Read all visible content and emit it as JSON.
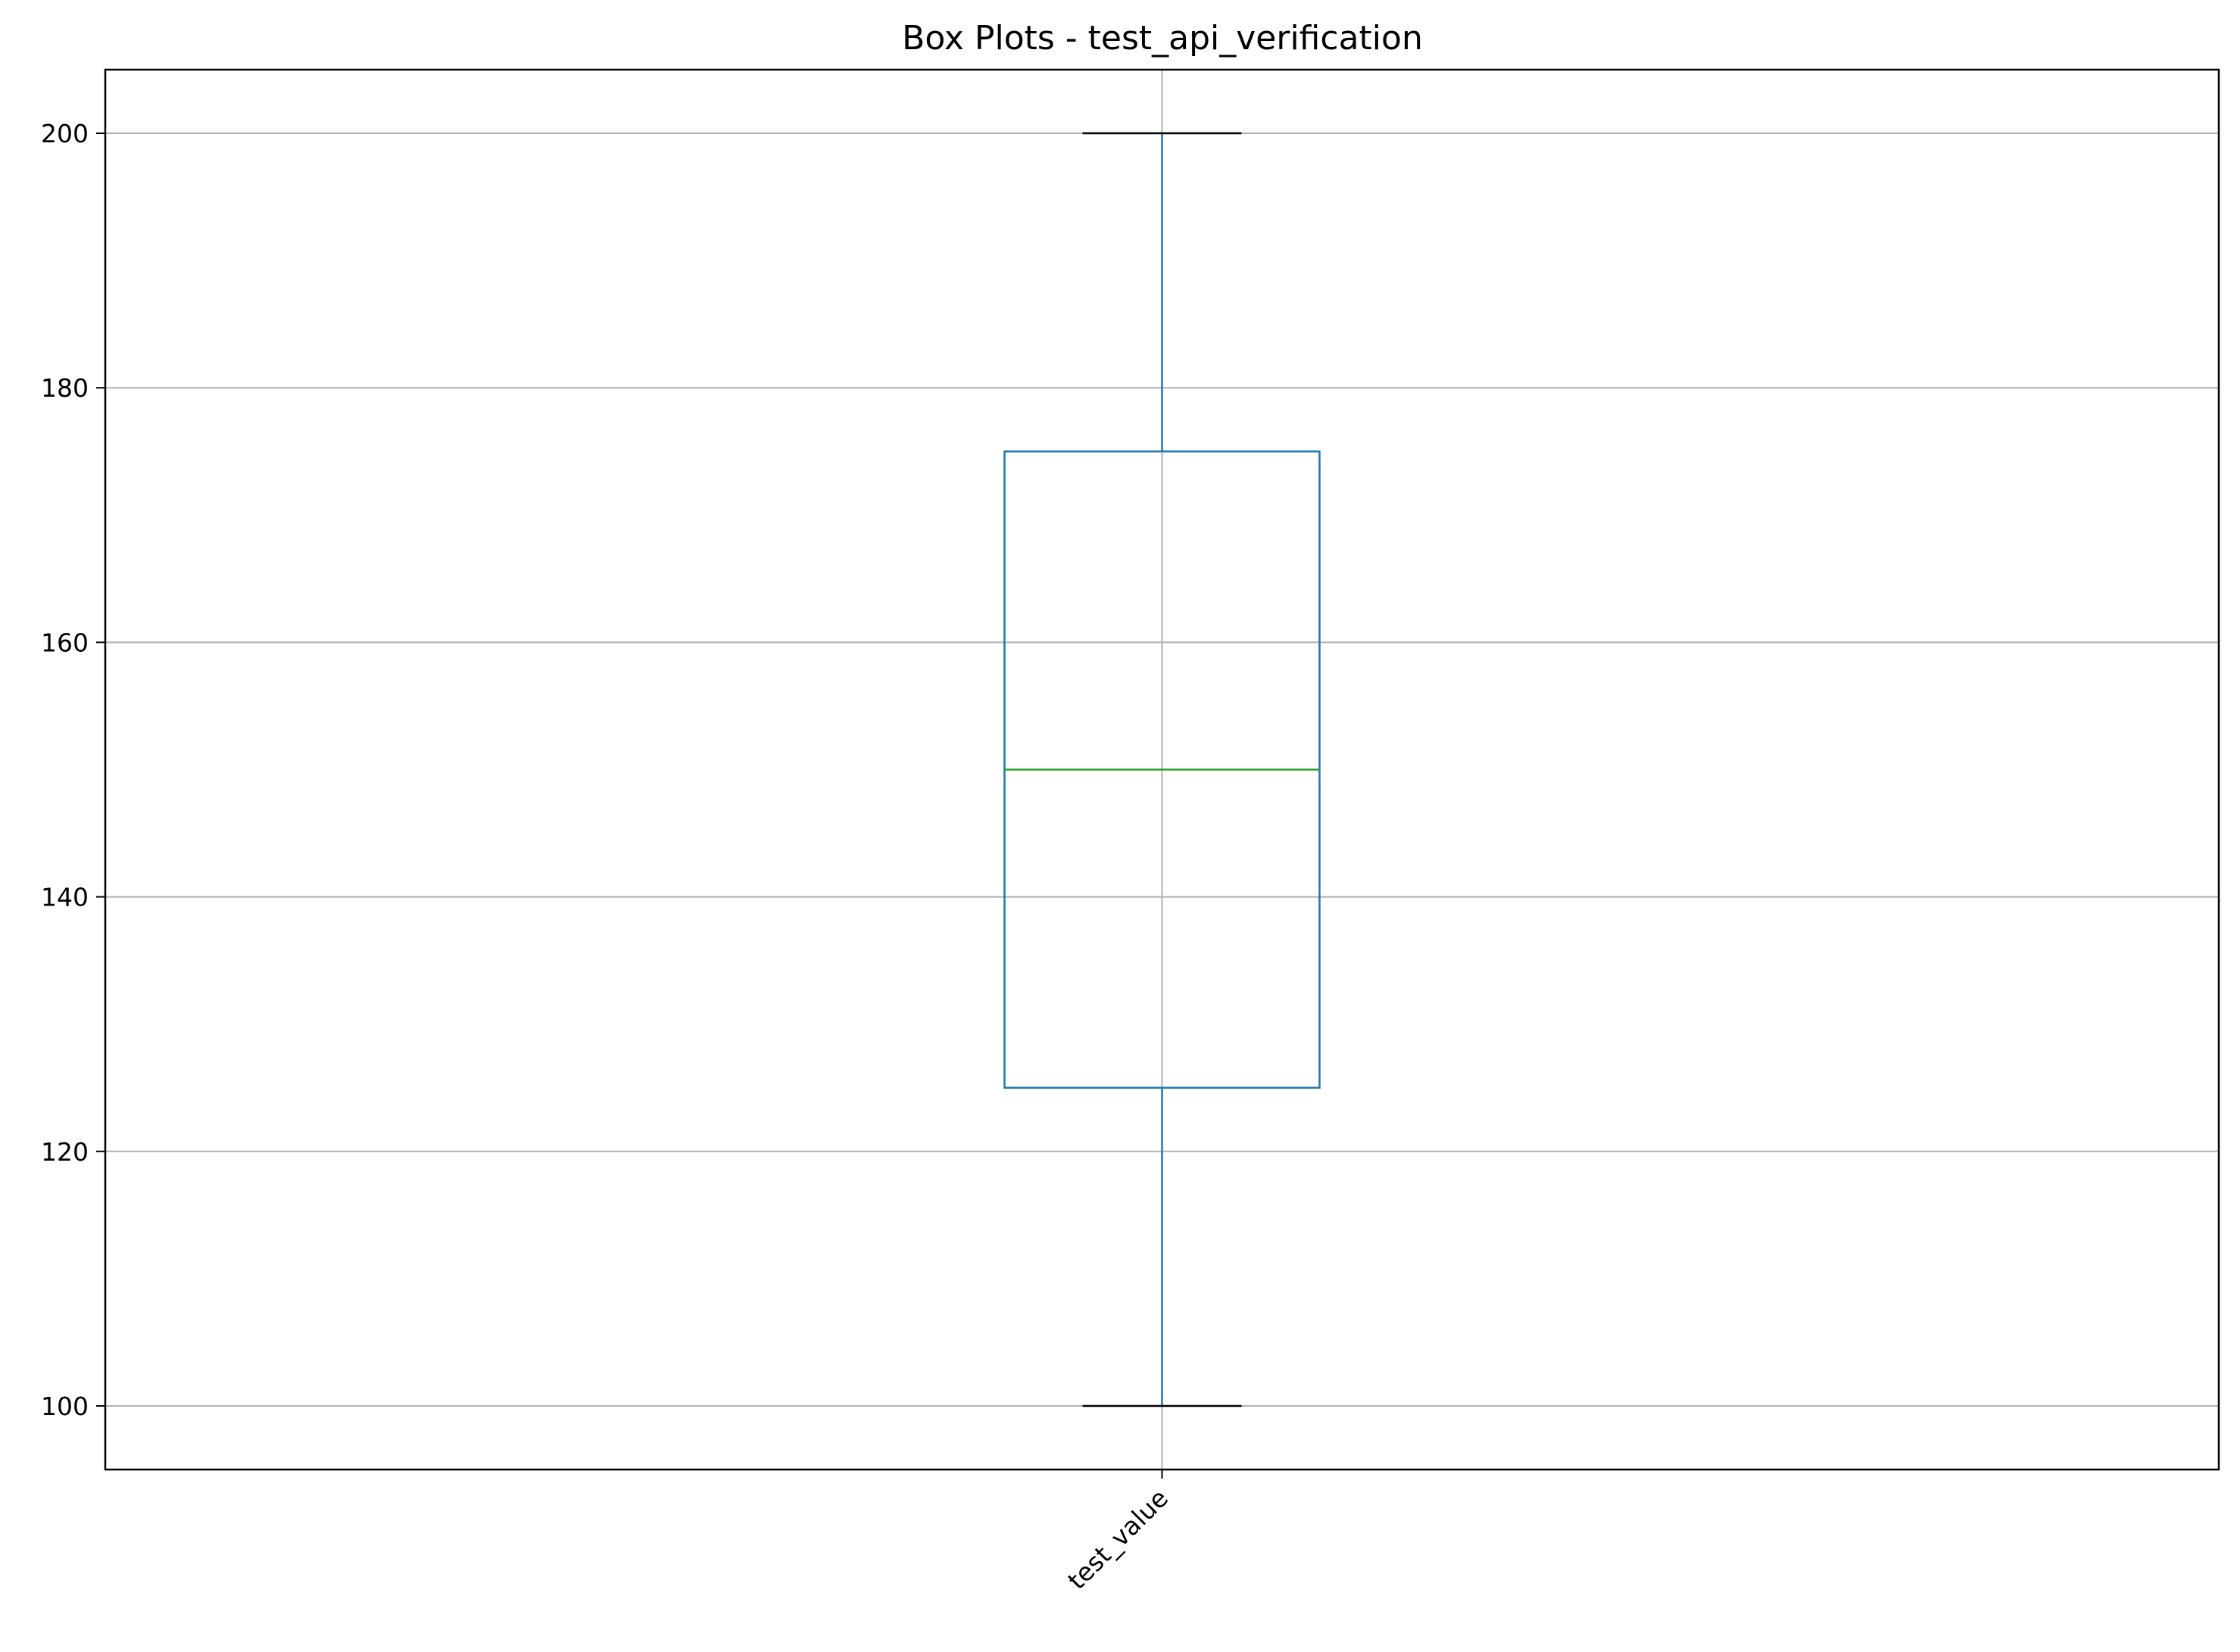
{
  "chart_data": {
    "type": "box",
    "title": "Box Plots - test_api_verification",
    "xlabel": "",
    "ylabel": "",
    "categories": [
      "test_value"
    ],
    "boxes": [
      {
        "label": "test_value",
        "whisker_low": 100,
        "q1": 125,
        "median": 150,
        "q3": 175,
        "whisker_high": 200
      }
    ],
    "ylim": [
      95,
      205
    ],
    "yticks": [
      100,
      120,
      140,
      160,
      180,
      200
    ],
    "grid": true,
    "legend": "none",
    "colors": {
      "box": "#1f77b4",
      "median": "#2ca02c",
      "caps": "#000000",
      "grid": "#b0b0b0",
      "axes": "#000000"
    }
  }
}
